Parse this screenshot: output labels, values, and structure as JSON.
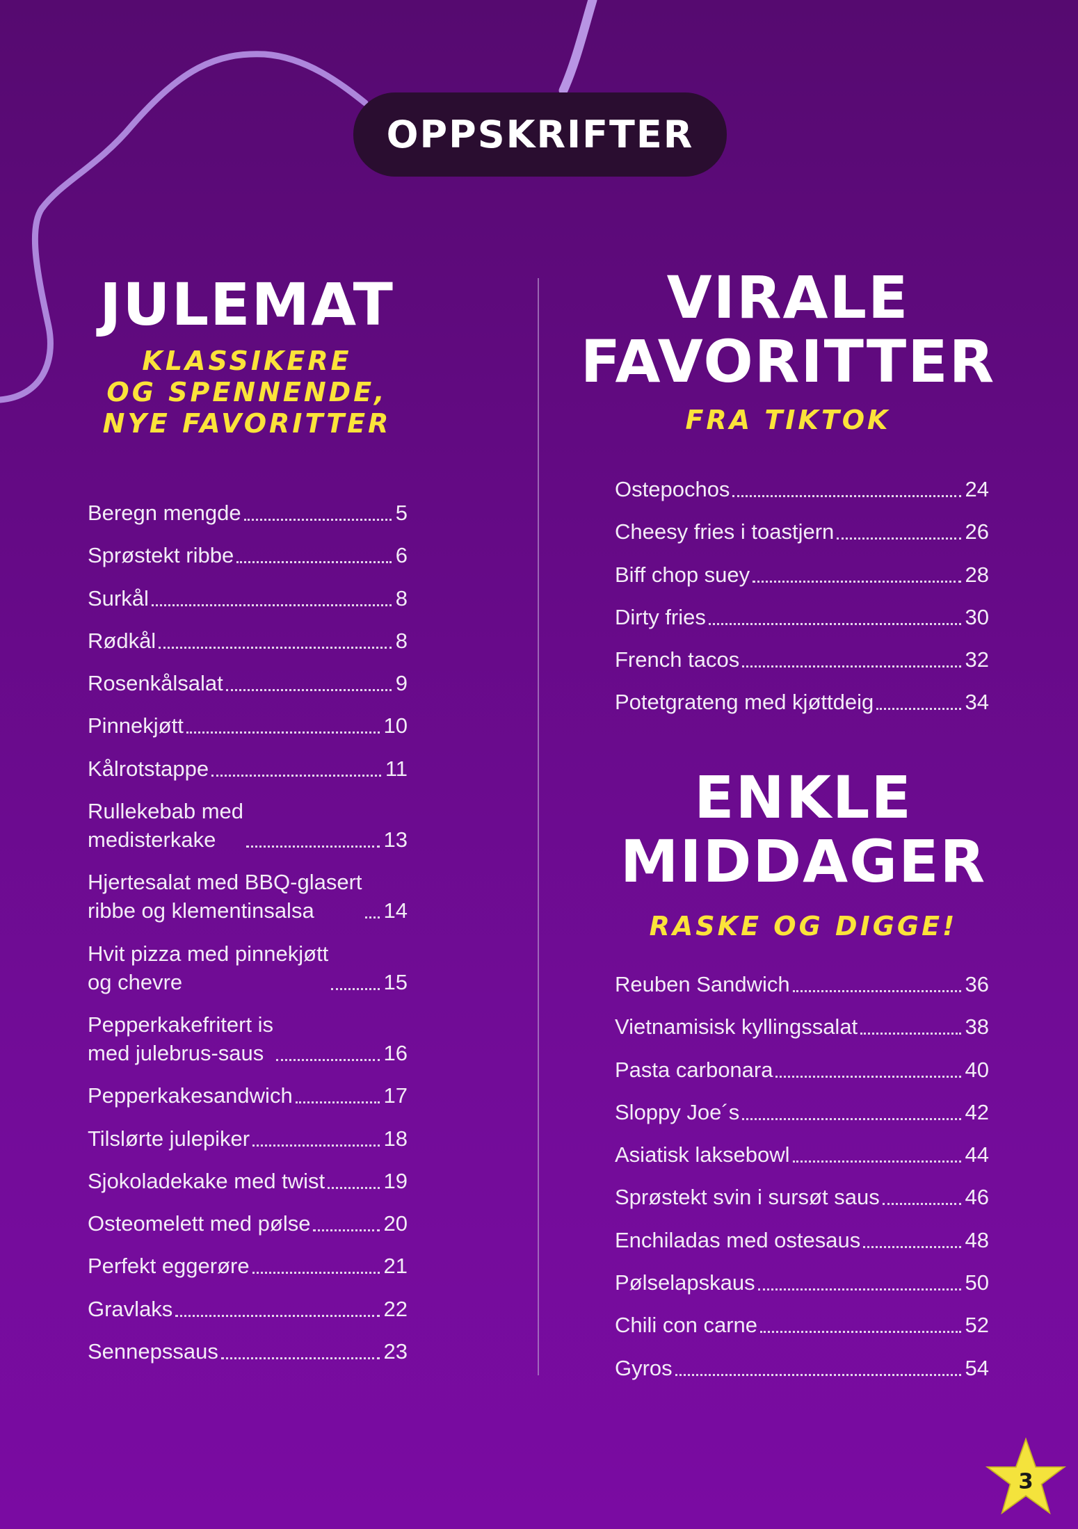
{
  "header": {
    "title": "OPPSKRIFTER"
  },
  "julemat": {
    "title": "JULEMAT",
    "subtitle": [
      "KLASSIKERE",
      "OG SPENNENDE,",
      "NYE FAVORITTER"
    ],
    "items": [
      {
        "name": "Beregn mengde",
        "page": "5"
      },
      {
        "name": "Sprøstekt ribbe",
        "page": "6"
      },
      {
        "name": "Surkål",
        "page": "8"
      },
      {
        "name": "Rødkål",
        "page": "8"
      },
      {
        "name": "Rosenkålsalat",
        "page": "9"
      },
      {
        "name": "Pinnekjøtt",
        "page": "10"
      },
      {
        "name": "Kålrotstappe",
        "page": "11"
      },
      {
        "name": "Rullekebab med\nmedisterkake",
        "page": "13"
      },
      {
        "name": "Hjertesalat med BBQ-glasert\nribbe og klementinsalsa",
        "page": "14"
      },
      {
        "name": "Hvit pizza med pinnekjøtt\nog chevre",
        "page": "15"
      },
      {
        "name": "Pepperkakefritert is\nmed julebrus-saus",
        "page": "16"
      },
      {
        "name": "Pepperkakesandwich",
        "page": "17"
      },
      {
        "name": "Tilslørte julepiker",
        "page": "18"
      },
      {
        "name": "Sjokoladekake med twist",
        "page": "19"
      },
      {
        "name": "Osteomelett med pølse",
        "page": "20"
      },
      {
        "name": "Perfekt eggerøre",
        "page": "21"
      },
      {
        "name": "Gravlaks",
        "page": "22"
      },
      {
        "name": "Sennepssaus",
        "page": "23"
      }
    ]
  },
  "virale": {
    "title": [
      "VIRALE",
      "FAVORITTER"
    ],
    "subtitle": "FRA TIKTOK",
    "items": [
      {
        "name": "Ostepochos",
        "page": "24"
      },
      {
        "name": "Cheesy fries i toastjern",
        "page": "26"
      },
      {
        "name": "Biff chop suey",
        "page": "28"
      },
      {
        "name": "Dirty fries",
        "page": "30"
      },
      {
        "name": "French tacos",
        "page": "32"
      },
      {
        "name": "Potetgrateng med kjøttdeig",
        "page": "34"
      }
    ]
  },
  "enkle": {
    "title": [
      "ENKLE",
      "MIDDAGER"
    ],
    "subtitle": "RASKE OG DIGGE!",
    "items": [
      {
        "name": "Reuben Sandwich",
        "page": "36"
      },
      {
        "name": "Vietnamisisk kyllingssalat",
        "page": "38"
      },
      {
        "name": "Pasta carbonara",
        "page": "40"
      },
      {
        "name": "Sloppy Joe´s",
        "page": "42"
      },
      {
        "name": "Asiatisk laksebowl",
        "page": "44"
      },
      {
        "name": "Sprøstekt svin i sursøt saus",
        "page": "46"
      },
      {
        "name": "Enchiladas med ostesaus",
        "page": "48"
      },
      {
        "name": "Pølselapskaus",
        "page": "50"
      },
      {
        "name": "Chili con carne",
        "page": "52"
      },
      {
        "name": "Gyros",
        "page": "54"
      }
    ]
  },
  "page_number": "3",
  "colors": {
    "background": "#6a0a8c",
    "accent_yellow": "#fbe33a",
    "pill": "#2a0d30",
    "ribbon": "#b08be0"
  }
}
